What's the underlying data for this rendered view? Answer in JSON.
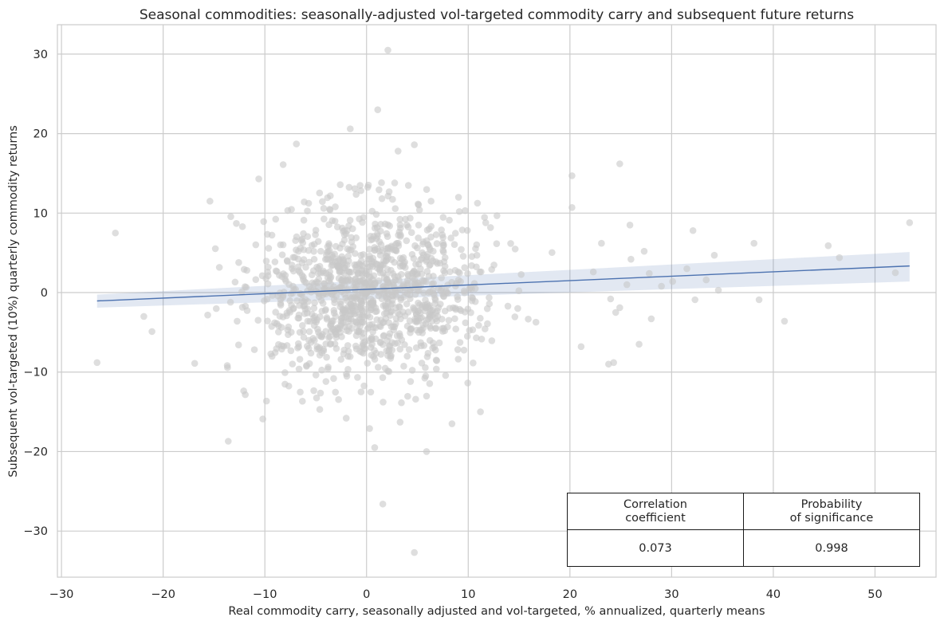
{
  "chart_data": {
    "type": "scatter",
    "title": "Seasonal commodities: seasonally-adjusted vol-targeted commodity carry and subsequent future returns",
    "xlabel": "Real commodity carry, seasonally adjusted and vol-targeted, % annualized, quarterly means",
    "ylabel": "Subsequent vol-targeted (10%) quarterly commodity returns",
    "xlim": [
      -30.4,
      56.0
    ],
    "ylim": [
      -35.8,
      33.7
    ],
    "xticks": [
      -30,
      -20,
      -10,
      0,
      10,
      20,
      30,
      40,
      50
    ],
    "yticks": [
      -30,
      -20,
      -10,
      0,
      10,
      20,
      30
    ],
    "grid": true,
    "regression": {
      "x": [
        -26.5,
        53.4
      ],
      "y": [
        -1.05,
        3.35
      ],
      "ci_lower": [
        -1.9,
        1.4
      ],
      "ci_upper": [
        -0.25,
        5.1
      ],
      "color": "#4c72b0"
    },
    "point_color": "#c8c8c8",
    "points_outliers": [
      [
        2.1,
        30.5
      ],
      [
        1.1,
        23.0
      ],
      [
        -1.6,
        20.6
      ],
      [
        -6.9,
        18.7
      ],
      [
        4.7,
        18.6
      ],
      [
        3.1,
        17.8
      ],
      [
        -8.2,
        16.1
      ],
      [
        24.9,
        16.2
      ],
      [
        -10.6,
        14.3
      ],
      [
        20.2,
        14.7
      ],
      [
        -12.8,
        8.7
      ],
      [
        -15.4,
        11.5
      ],
      [
        -24.7,
        7.5
      ],
      [
        -26.5,
        -8.8
      ],
      [
        -21.1,
        -4.9
      ],
      [
        -21.9,
        -3.0
      ],
      [
        -16.9,
        -8.9
      ],
      [
        -13.6,
        -18.7
      ],
      [
        -10.2,
        -15.9
      ],
      [
        5.9,
        -20.0
      ],
      [
        0.8,
        -19.5
      ],
      [
        1.6,
        -26.6
      ],
      [
        4.7,
        -32.7
      ],
      [
        8.4,
        -16.5
      ],
      [
        11.2,
        -15.0
      ],
      [
        -4.6,
        -14.7
      ],
      [
        -2.0,
        -15.8
      ],
      [
        3.3,
        -16.3
      ],
      [
        0.3,
        -17.1
      ],
      [
        23.1,
        6.2
      ],
      [
        26.0,
        4.2
      ],
      [
        27.3,
        5.2
      ],
      [
        29.0,
        0.8
      ],
      [
        31.5,
        3.0
      ],
      [
        32.1,
        7.8
      ],
      [
        33.4,
        1.6
      ],
      [
        34.2,
        4.7
      ],
      [
        34.6,
        0.3
      ],
      [
        38.1,
        6.2
      ],
      [
        38.6,
        -0.9
      ],
      [
        41.1,
        -3.6
      ],
      [
        45.4,
        5.9
      ],
      [
        46.5,
        4.4
      ],
      [
        52.0,
        2.5
      ],
      [
        53.4,
        8.8
      ],
      [
        24.5,
        -2.5
      ],
      [
        24.0,
        -0.8
      ],
      [
        25.6,
        1.0
      ],
      [
        27.8,
        2.4
      ],
      [
        32.3,
        -0.9
      ],
      [
        24.3,
        -8.8
      ],
      [
        23.8,
        -9.0
      ],
      [
        26.8,
        -6.5
      ],
      [
        28.0,
        -3.3
      ],
      [
        21.1,
        -6.8
      ],
      [
        22.3,
        2.6
      ],
      [
        24.9,
        -1.9
      ],
      [
        20.2,
        10.7
      ],
      [
        25.9,
        8.5
      ],
      [
        30.1,
        1.4
      ]
    ],
    "cluster": {
      "count": 1200,
      "center": [
        0.2,
        0.1
      ],
      "spread_x": 5.6,
      "spread_y": 5.2
    }
  },
  "stats_table": {
    "headers": [
      [
        "Correlation",
        "coefficient"
      ],
      [
        "Probability",
        "of significance"
      ]
    ],
    "values": [
      "0.073",
      "0.998"
    ]
  }
}
